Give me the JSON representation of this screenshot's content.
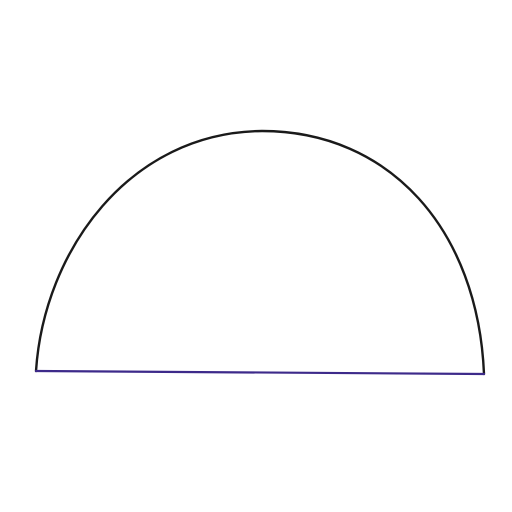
{
  "diagram": {
    "shape": "semicircle",
    "arc_color": "#1a1a1a",
    "base_color": "#3d2a8a",
    "background": "#ffffff"
  }
}
